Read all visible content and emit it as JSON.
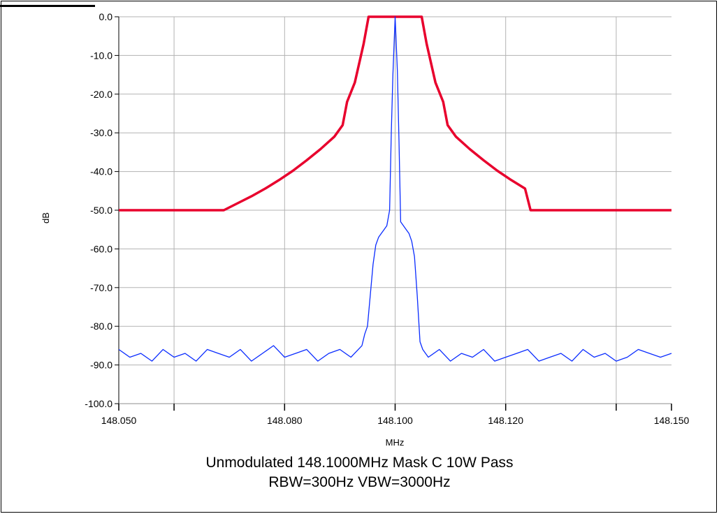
{
  "chart_data": {
    "type": "line",
    "xlabel": "MHz",
    "ylabel": "dB",
    "xlim": [
      148.05,
      148.15
    ],
    "ylim": [
      -100,
      0
    ],
    "grid": true,
    "x_ticks": [
      {
        "value": 148.05,
        "label": "148.050"
      },
      {
        "value": 148.06,
        "label": ""
      },
      {
        "value": 148.08,
        "label": "148.080"
      },
      {
        "value": 148.1,
        "label": "148.100"
      },
      {
        "value": 148.12,
        "label": "148.120"
      },
      {
        "value": 148.14,
        "label": ""
      },
      {
        "value": 148.15,
        "label": "148.150"
      }
    ],
    "x_grid": [
      148.06,
      148.08,
      148.1,
      148.12,
      148.14
    ],
    "y_ticks": [
      {
        "value": 0,
        "label": "0.0"
      },
      {
        "value": -10,
        "label": "-10.0"
      },
      {
        "value": -20,
        "label": "-20.0"
      },
      {
        "value": -30,
        "label": "-30.0"
      },
      {
        "value": -40,
        "label": "-40.0"
      },
      {
        "value": -50,
        "label": "-50.0"
      },
      {
        "value": -60,
        "label": "-60.0"
      },
      {
        "value": -70,
        "label": "-70.0"
      },
      {
        "value": -80,
        "label": "-80.0"
      },
      {
        "value": -90,
        "label": "-90.0"
      },
      {
        "value": -100,
        "label": "-100.0"
      }
    ],
    "series": [
      {
        "color": "#e8002d",
        "x": [
          148.05,
          148.069,
          148.0715,
          148.074,
          148.0765,
          148.079,
          148.0815,
          148.084,
          148.0865,
          148.089,
          148.0905,
          148.0913,
          148.0927,
          148.0943,
          148.0952,
          148.1048,
          148.1057,
          148.1073,
          148.1087,
          148.1095,
          148.111,
          148.1135,
          148.116,
          148.1185,
          148.121,
          148.1235,
          148.1245,
          148.15
        ],
        "y": [
          -50,
          -50,
          -48.2,
          -46.4,
          -44.4,
          -42.2,
          -39.8,
          -37.1,
          -34.2,
          -31.0,
          -28.0,
          -22.0,
          -17.0,
          -7.0,
          0,
          0,
          -7.0,
          -17.0,
          -22.0,
          -28.0,
          -31.0,
          -34.2,
          -37.1,
          -39.8,
          -42.2,
          -44.4,
          -50,
          -50
        ]
      },
      {
        "color": "#0a2cff",
        "x": [
          148.05,
          148.052,
          148.054,
          148.056,
          148.058,
          148.06,
          148.062,
          148.064,
          148.066,
          148.068,
          148.07,
          148.072,
          148.074,
          148.076,
          148.078,
          148.08,
          148.082,
          148.084,
          148.086,
          148.088,
          148.09,
          148.092,
          148.094,
          148.0945,
          148.095,
          148.0955,
          148.096,
          148.0965,
          148.097,
          148.0975,
          148.098,
          148.0985,
          148.099,
          148.0993,
          148.0996,
          148.1,
          148.1004,
          148.1007,
          148.101,
          148.1015,
          148.102,
          148.1025,
          148.103,
          148.1035,
          148.104,
          148.1045,
          148.105,
          148.1055,
          148.106,
          148.108,
          148.11,
          148.112,
          148.114,
          148.116,
          148.118,
          148.12,
          148.122,
          148.124,
          148.126,
          148.128,
          148.13,
          148.132,
          148.134,
          148.136,
          148.138,
          148.14,
          148.142,
          148.144,
          148.146,
          148.148,
          148.15
        ],
        "y": [
          -86,
          -88,
          -87,
          -89,
          -86,
          -88,
          -87,
          -89,
          -86,
          -87,
          -88,
          -86,
          -89,
          -87,
          -85,
          -88,
          -87,
          -86,
          -89,
          -87,
          -86,
          -88,
          -85,
          -82,
          -80,
          -72,
          -64,
          -59,
          -57,
          -56,
          -55,
          -54,
          -50,
          -30,
          -15,
          0,
          -14,
          -32,
          -53,
          -54,
          -55,
          -56,
          -58,
          -62,
          -72,
          -84,
          -86,
          -87,
          -88,
          -86,
          -89,
          -87,
          -88,
          -86,
          -89,
          -88,
          -87,
          -86,
          -89,
          -88,
          -87,
          -89,
          -86,
          -88,
          -87,
          -89,
          -88,
          -86,
          -87,
          -88,
          -87
        ]
      }
    ]
  },
  "caption": {
    "line1": "Unmodulated  148.1000MHz  Mask C  10W Pass",
    "line2": "RBW=300Hz VBW=3000Hz"
  }
}
